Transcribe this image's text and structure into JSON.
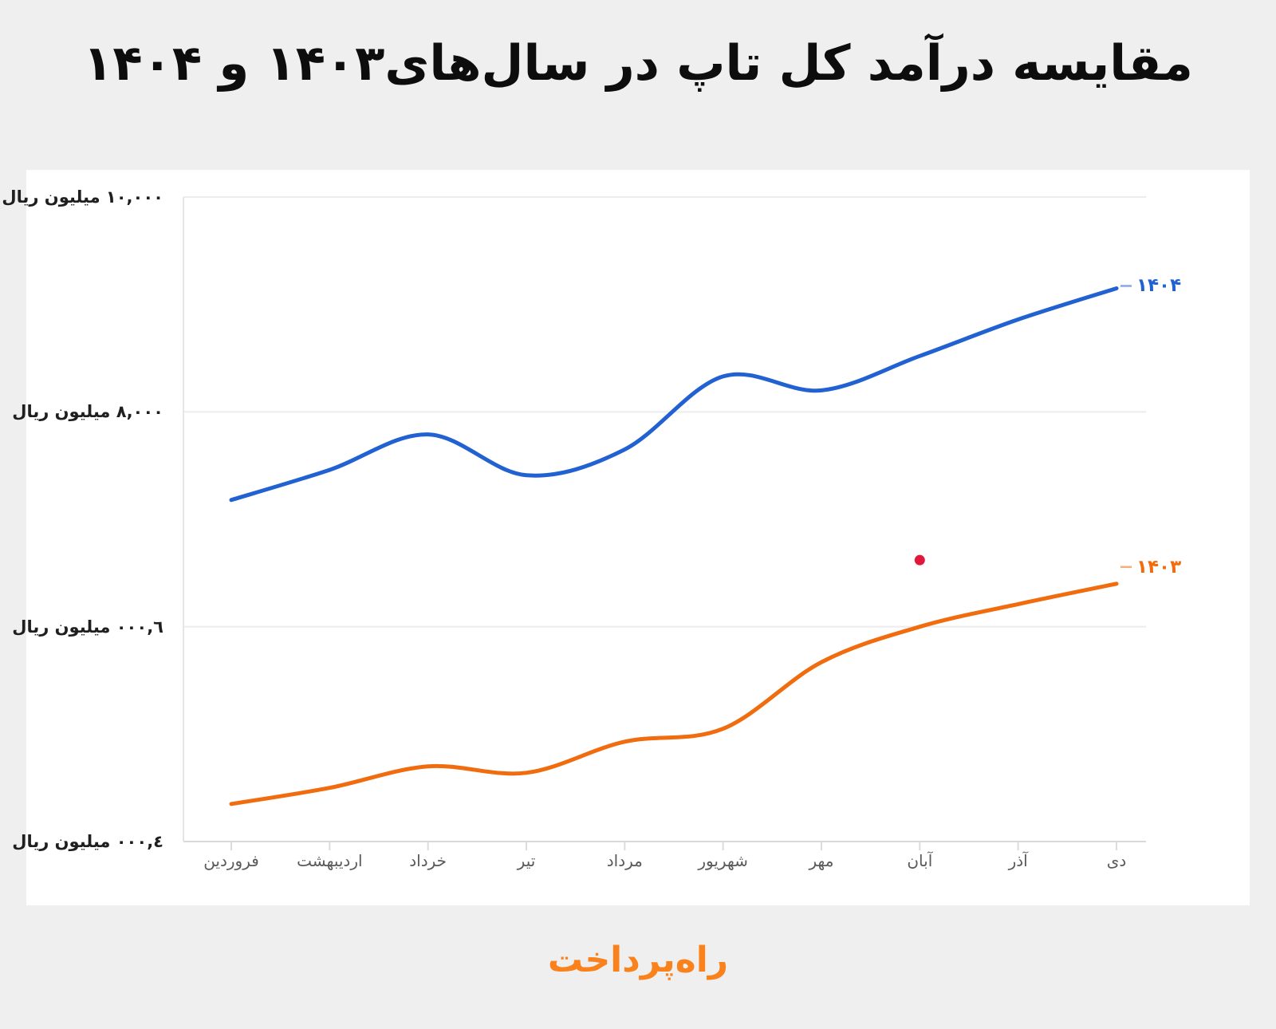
{
  "title": {
    "text": "مقایسه درآمد کل تاپ در سال‌های۱۴۰۳ و ۱۴۰۴"
  },
  "footer": {
    "logo_text": "راه‌پرداخت"
  },
  "colors": {
    "background": "#efefef",
    "panel": "#ffffff",
    "grid": "#ececec",
    "baseline": "#d9d9d9",
    "axis": "#e5e5e5",
    "tick": "#dcdcdc",
    "title_text": "#0d0d0d",
    "y_label": "#1f1f1f",
    "x_label": "#5a5a5a",
    "logo": "#f9821d"
  },
  "chart_data": {
    "type": "line",
    "title": "مقایسه درآمد کل تاپ در سال‌های۱۴۰۳ و ۱۴۰۴",
    "categories": [
      "فروردین",
      "اردیبهشت",
      "خرداد",
      "تیر",
      "مرداد",
      "شهریور",
      "مهر",
      "آبان",
      "آذر",
      "دی"
    ],
    "series": [
      {
        "name": "۱۴۰۴",
        "color": "#2161d2",
        "values": [
          7180,
          7460,
          7790,
          7410,
          7650,
          8330,
          8200,
          8520,
          8860,
          9150
        ]
      },
      {
        "name": "۱۴۰۳",
        "color": "#f06c0e",
        "values": [
          4350,
          4500,
          4700,
          4640,
          4930,
          5050,
          5670,
          6000,
          6210,
          6400
        ]
      }
    ],
    "y_ticks": [
      {
        "value": 10000,
        "label": "۱۰,۰۰۰ میلیون ریال"
      },
      {
        "value": 8000,
        "label": "۸,۰۰۰ میلیون ریال"
      },
      {
        "value": 6000,
        "label": "٦,۰۰۰ میلیون ریال"
      },
      {
        "value": 4000,
        "label": "٤,۰۰۰ میلیون ریال"
      }
    ],
    "ylim": [
      4000,
      10000
    ],
    "ylabel": "میلیون ریال",
    "xlabel": "",
    "grid": true,
    "legend_position": "line-end-labels",
    "annotation_dot": {
      "category": "آبان",
      "category_index": 7,
      "value": 6620,
      "color": "#e0193c"
    }
  }
}
